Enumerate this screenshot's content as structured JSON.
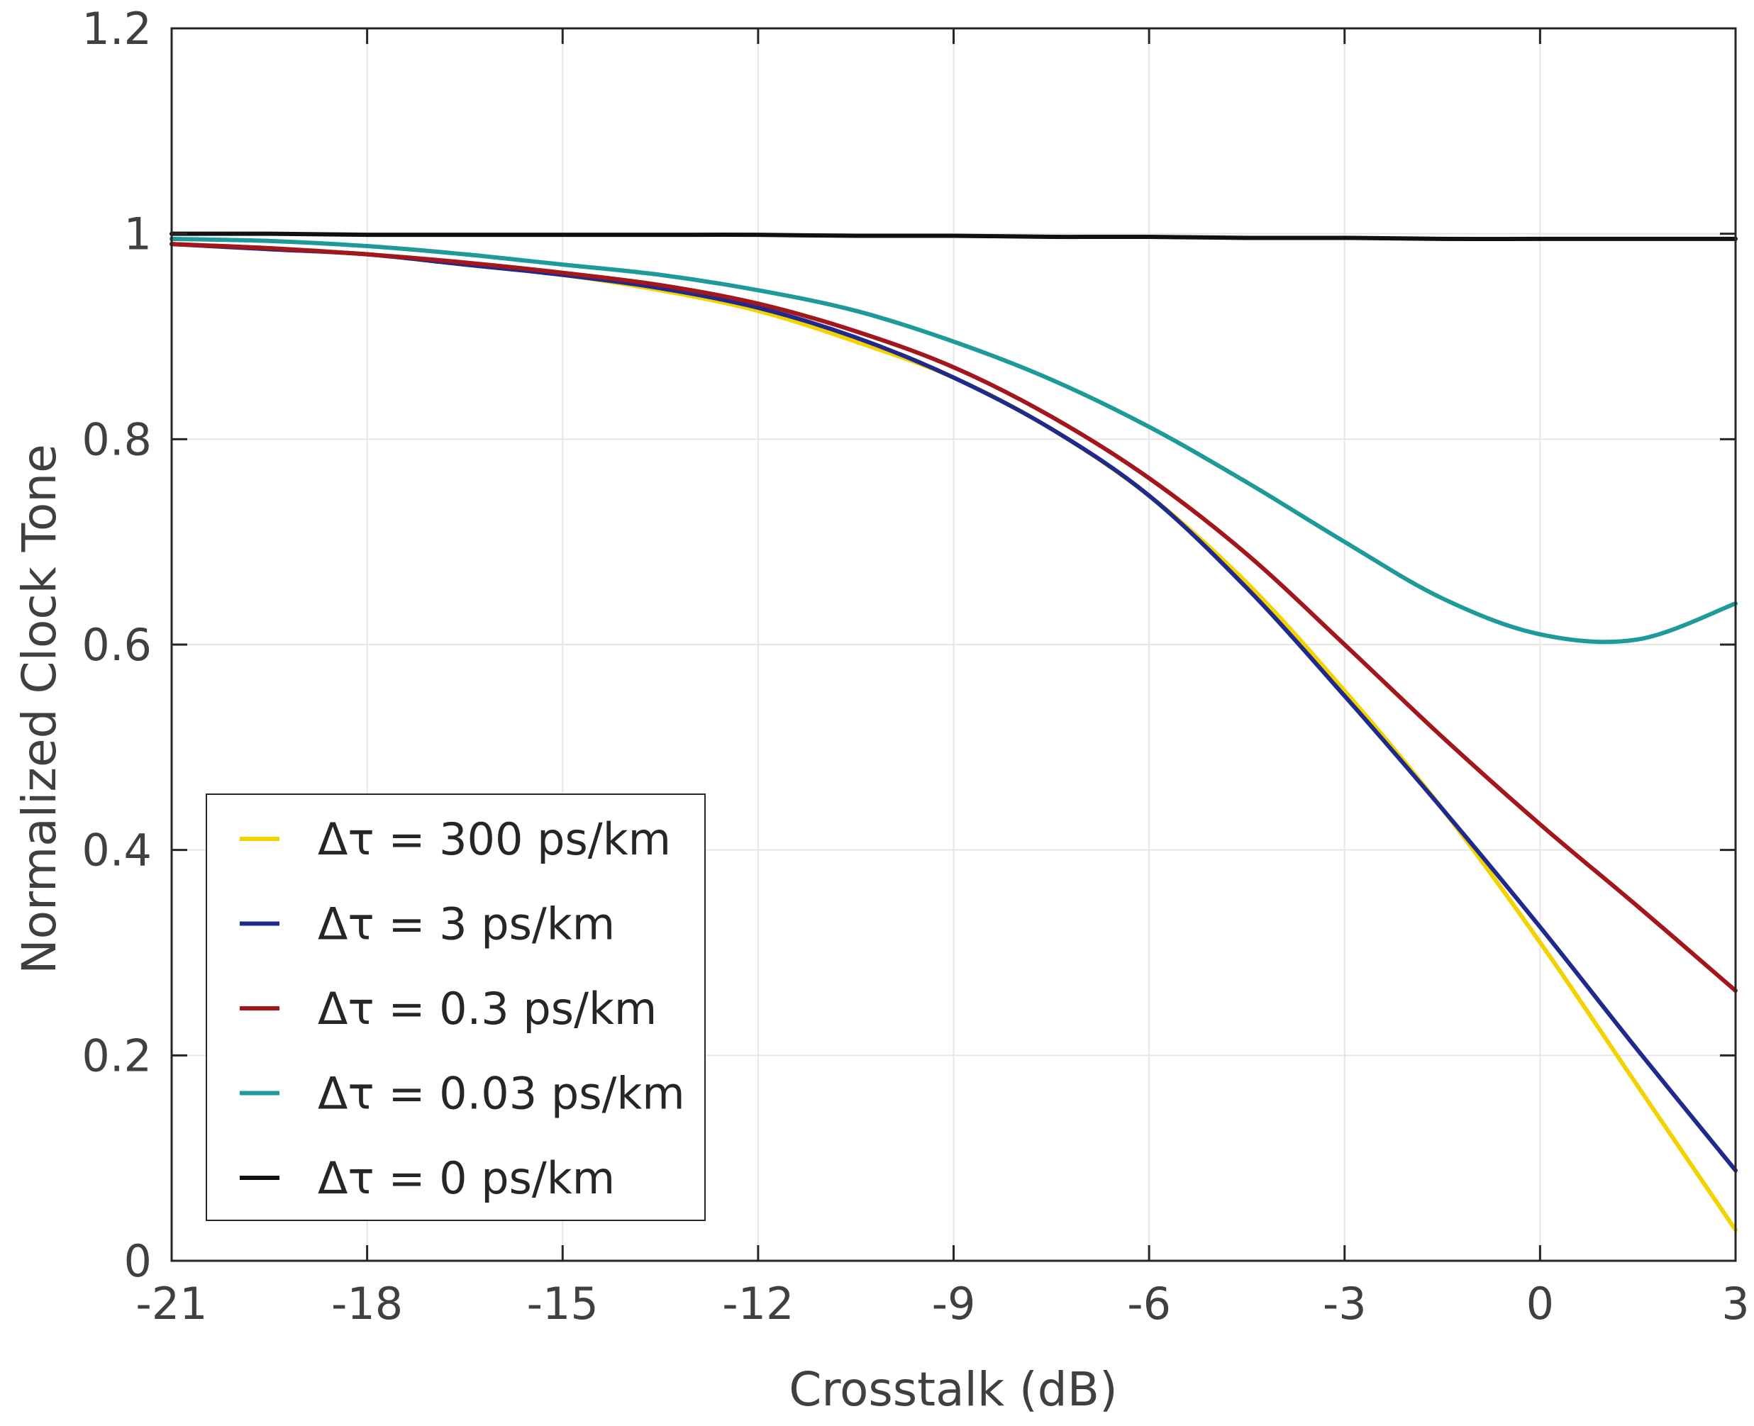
{
  "chart_data": {
    "type": "line",
    "title": "",
    "xlabel": "Crosstalk (dB)",
    "ylabel": "Normalized  Clock Tone",
    "xlim": [
      -21,
      3
    ],
    "ylim": [
      0,
      1.2
    ],
    "xticks": [
      -21,
      -18,
      -15,
      -12,
      -9,
      -6,
      -3,
      0,
      3
    ],
    "yticks": [
      0,
      0.2,
      0.4,
      0.6,
      0.8,
      1,
      1.2
    ],
    "xtick_labels": [
      "-21",
      "-18",
      "-15",
      "-12",
      "-9",
      "-6",
      "-3",
      "0",
      "3"
    ],
    "ytick_labels": [
      "0",
      "0.2",
      "0.4",
      "0.6",
      "0.8",
      "1",
      "1.2"
    ],
    "grid": true,
    "legend_position": "bottom-left",
    "x": [
      -21,
      -19.5,
      -18,
      -16.5,
      -15,
      -13.5,
      -12,
      -10.5,
      -9,
      -7.5,
      -6,
      -4.5,
      -3,
      -1.5,
      0,
      1.5,
      3
    ],
    "series": [
      {
        "name": "Δτ = 300 ps/km",
        "color": "#f2d300",
        "values": [
          0.99,
          0.985,
          0.98,
          0.97,
          0.96,
          0.945,
          0.925,
          0.895,
          0.86,
          0.81,
          0.745,
          0.66,
          0.555,
          0.44,
          0.31,
          0.17,
          0.03
        ]
      },
      {
        "name": "Δτ = 3 ps/km",
        "color": "#1f2a8c",
        "values": [
          0.99,
          0.985,
          0.98,
          0.97,
          0.96,
          0.947,
          0.928,
          0.899,
          0.86,
          0.81,
          0.745,
          0.655,
          0.55,
          0.44,
          0.325,
          0.205,
          0.088
        ]
      },
      {
        "name": "Δτ = 0.3 ps/km",
        "color": "#a3161c",
        "values": [
          0.99,
          0.986,
          0.98,
          0.972,
          0.962,
          0.95,
          0.932,
          0.905,
          0.87,
          0.822,
          0.762,
          0.688,
          0.6,
          0.51,
          0.425,
          0.345,
          0.263
        ]
      },
      {
        "name": "Δτ = 0.03 ps/km",
        "color": "#1f9a9a",
        "values": [
          0.995,
          0.993,
          0.988,
          0.98,
          0.97,
          0.96,
          0.945,
          0.925,
          0.895,
          0.858,
          0.812,
          0.758,
          0.7,
          0.645,
          0.61,
          0.605,
          0.64
        ]
      },
      {
        "name": "Δτ = 0 ps/km",
        "color": "#111111",
        "values": [
          1.0,
          1.0,
          0.999,
          0.999,
          0.999,
          0.999,
          0.999,
          0.998,
          0.998,
          0.997,
          0.997,
          0.996,
          0.996,
          0.995,
          0.995,
          0.995,
          0.995
        ]
      }
    ]
  }
}
